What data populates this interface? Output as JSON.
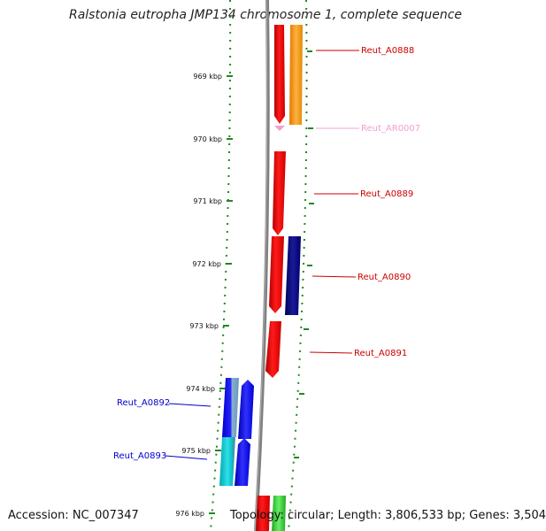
{
  "title": "Ralstonia eutropha JMP134 chromosome 1, complete sequence",
  "footer": {
    "accession": "Accession: NC_007347",
    "summary": "Topology: circular; Length: 3,806,533 bp; Genes: 3,504"
  },
  "scale": {
    "unit": "kbp",
    "ticks": [
      "969 kbp",
      "970 kbp",
      "971 kbp",
      "972 kbp",
      "973 kbp",
      "974 kbp",
      "975 kbp",
      "976 kbp"
    ]
  },
  "genes": [
    {
      "name": "Reut_A0888",
      "color": "#cc0000"
    },
    {
      "name": "Reut_AR0007",
      "color": "#f0a0d0"
    },
    {
      "name": "Reut_A0889",
      "color": "#cc0000"
    },
    {
      "name": "Reut_A0890",
      "color": "#cc0000"
    },
    {
      "name": "Reut_A0891",
      "color": "#cc0000"
    },
    {
      "name": "Reut_A0892",
      "color": "#0000cc"
    },
    {
      "name": "Reut_A0893",
      "color": "#0000cc"
    }
  ],
  "colors": {
    "backbone": "#8a8a8a",
    "dotted_track": "#1f8a1f",
    "red_gene": "#ff0000",
    "orange_gene": "#ff9900",
    "pink_gene": "#f0a0d0",
    "navy_gene": "#000080",
    "blue_gene": "#0000ff",
    "cyan_gene": "#00cccc",
    "green_gene": "#33cc33"
  }
}
